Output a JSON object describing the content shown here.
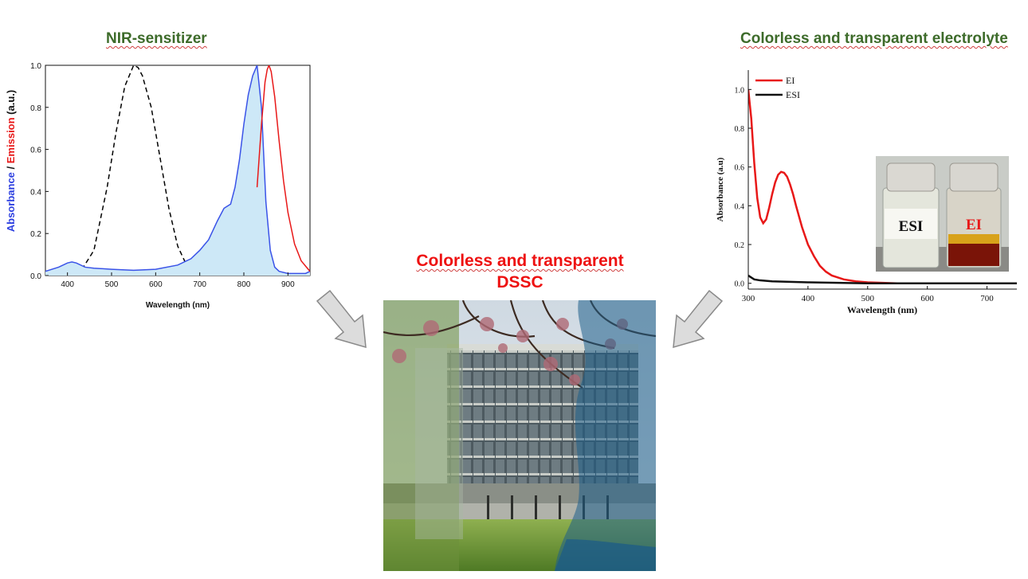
{
  "left_panel": {
    "title": "NIR-sensitizer"
  },
  "right_panel": {
    "title": "Colorless and transparent electrolyte"
  },
  "center_panel": {
    "title_line1": "Colorless and transparent",
    "title_line2": "DSSC"
  },
  "chart_data": [
    {
      "type": "line",
      "title": "",
      "xlabel": "Wavelength (nm)",
      "ylabel_parts": [
        "Absorbance",
        " / ",
        "Emission",
        " (a.u.)"
      ],
      "xlim": [
        350,
        950
      ],
      "ylim": [
        0,
        1.0
      ],
      "xticks": [
        400,
        500,
        600,
        700,
        800,
        900
      ],
      "yticks": [
        "0.0",
        "0.2",
        "0.4",
        "0.6",
        "0.8",
        "1.0"
      ],
      "series": [
        {
          "style": "dashed",
          "color": "#000000",
          "x": [
            400,
            430,
            460,
            490,
            510,
            530,
            550,
            560,
            570,
            590,
            610,
            630,
            650,
            670,
            690,
            700
          ],
          "y": [
            0.0,
            0.02,
            0.12,
            0.42,
            0.68,
            0.9,
            1.0,
            0.99,
            0.95,
            0.8,
            0.56,
            0.32,
            0.14,
            0.05,
            0.01,
            0.0
          ]
        },
        {
          "style": "solid-filled",
          "color": "#3a53e8",
          "fill": "#cde8f7",
          "x": [
            350,
            380,
            400,
            410,
            420,
            440,
            460,
            500,
            550,
            600,
            650,
            680,
            700,
            720,
            740,
            755,
            770,
            780,
            790,
            800,
            810,
            820,
            830,
            840,
            850,
            860,
            870,
            880,
            900,
            920,
            940,
            950
          ],
          "y": [
            0.02,
            0.04,
            0.06,
            0.065,
            0.06,
            0.04,
            0.035,
            0.03,
            0.025,
            0.03,
            0.05,
            0.08,
            0.12,
            0.17,
            0.26,
            0.32,
            0.34,
            0.42,
            0.55,
            0.72,
            0.86,
            0.95,
            1.0,
            0.8,
            0.35,
            0.12,
            0.04,
            0.02,
            0.01,
            0.01,
            0.01,
            0.02
          ]
        },
        {
          "style": "solid",
          "color": "#e81818",
          "x": [
            830,
            840,
            848,
            853,
            857,
            862,
            870,
            880,
            890,
            900,
            915,
            930,
            950
          ],
          "y": [
            0.42,
            0.72,
            0.92,
            0.98,
            1.0,
            0.97,
            0.85,
            0.64,
            0.45,
            0.3,
            0.15,
            0.07,
            0.02
          ]
        }
      ]
    },
    {
      "type": "line",
      "title": "",
      "xlabel": "Wavelength (nm)",
      "ylabel": "Absorbance (a.u)",
      "xlim": [
        300,
        750
      ],
      "ylim": [
        -0.03,
        1.1
      ],
      "xticks": [
        300,
        400,
        500,
        600,
        700
      ],
      "yticks": [
        "0.0",
        "0.2",
        "0.4",
        "0.6",
        "0.8",
        "1.0"
      ],
      "legend_position": "top-left",
      "series": [
        {
          "name": "EI",
          "color": "#e81818",
          "x": [
            300,
            305,
            310,
            315,
            320,
            325,
            330,
            335,
            340,
            345,
            350,
            355,
            360,
            365,
            370,
            375,
            380,
            390,
            400,
            410,
            420,
            430,
            440,
            460,
            480,
            500,
            550,
            600,
            650,
            700,
            750
          ],
          "y": [
            1.0,
            0.85,
            0.62,
            0.44,
            0.34,
            0.31,
            0.33,
            0.39,
            0.46,
            0.52,
            0.56,
            0.575,
            0.57,
            0.55,
            0.51,
            0.46,
            0.4,
            0.29,
            0.2,
            0.14,
            0.09,
            0.06,
            0.04,
            0.02,
            0.01,
            0.005,
            0.0,
            0.0,
            0.0,
            0.0,
            0.0
          ]
        },
        {
          "name": "ESI",
          "color": "#111111",
          "x": [
            300,
            305,
            310,
            320,
            340,
            400,
            500,
            600,
            700,
            750
          ],
          "y": [
            0.04,
            0.03,
            0.02,
            0.015,
            0.01,
            0.005,
            0.0,
            0.0,
            0.0,
            0.0
          ]
        }
      ],
      "inset_labels": {
        "left_vial": "ESI",
        "right_vial": "EI"
      }
    }
  ]
}
